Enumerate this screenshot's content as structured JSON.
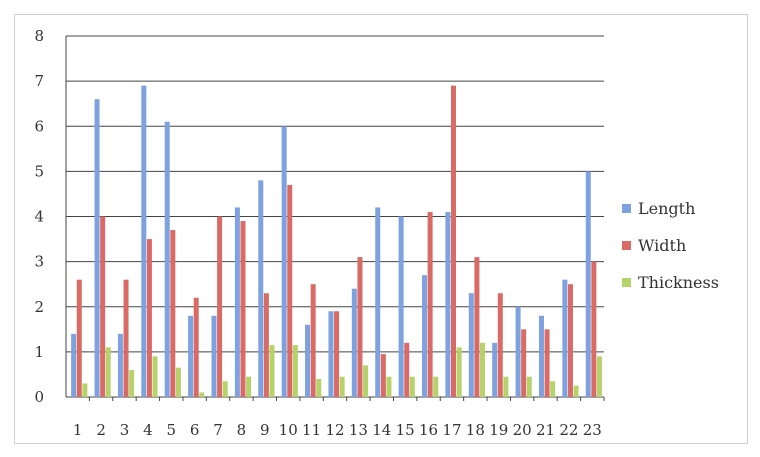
{
  "chart_data": {
    "type": "bar",
    "categories": [
      "1",
      "2",
      "3",
      "4",
      "5",
      "6",
      "7",
      "8",
      "9",
      "10",
      "11",
      "12",
      "13",
      "14",
      "15",
      "16",
      "17",
      "18",
      "19",
      "20",
      "21",
      "22",
      "23"
    ],
    "series": [
      {
        "name": "Length",
        "color": "#7ea1df",
        "values": [
          1.4,
          6.6,
          1.4,
          6.9,
          6.1,
          1.8,
          1.8,
          4.2,
          4.8,
          6.0,
          1.6,
          1.9,
          2.4,
          4.2,
          4.0,
          2.7,
          4.1,
          2.3,
          1.2,
          2.0,
          1.8,
          2.6,
          5.0
        ]
      },
      {
        "name": "Width",
        "color": "#d96a66",
        "values": [
          2.6,
          4.0,
          2.6,
          3.5,
          3.7,
          2.2,
          4.0,
          3.9,
          2.3,
          4.7,
          2.5,
          1.9,
          3.1,
          0.95,
          1.2,
          4.1,
          6.9,
          3.1,
          2.3,
          1.5,
          1.5,
          2.5,
          3.0
        ]
      },
      {
        "name": "Thickness",
        "color": "#b5d36a",
        "values": [
          0.3,
          1.1,
          0.6,
          0.9,
          0.65,
          0.1,
          0.35,
          0.45,
          1.15,
          1.15,
          0.4,
          0.45,
          0.7,
          0.45,
          0.45,
          0.45,
          1.1,
          1.2,
          0.45,
          0.45,
          0.35,
          0.25,
          0.9
        ]
      }
    ],
    "ylim": [
      0,
      8
    ],
    "yticks": [
      0,
      1,
      2,
      3,
      4,
      5,
      6,
      7,
      8
    ],
    "ytick_labels": [
      "0",
      "1",
      "2",
      "3",
      "4",
      "5",
      "6",
      "7",
      "8"
    ],
    "grid": true,
    "legend_position": "right"
  }
}
